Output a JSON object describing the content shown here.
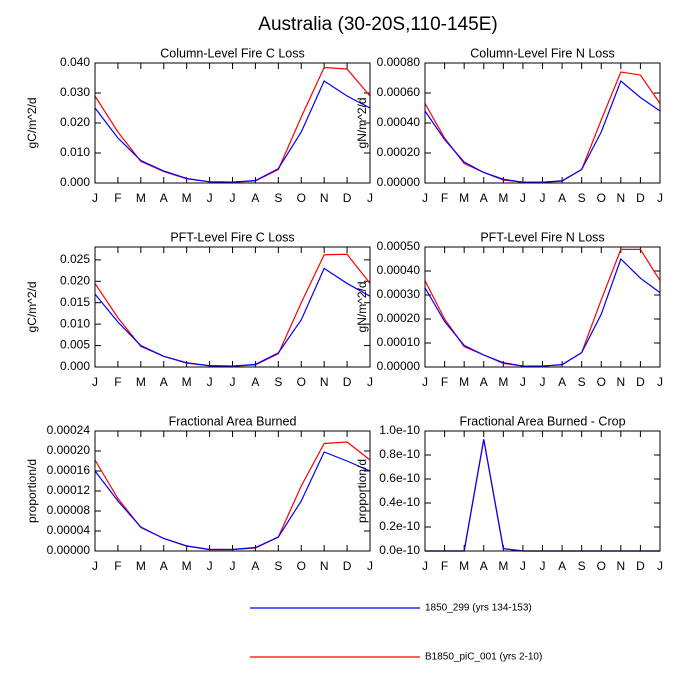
{
  "title": "Australia (30-20S,110-145E)",
  "chart_data": [
    {
      "type": "line",
      "title": "Column-Level Fire C Loss",
      "ylabel": "gC/m^2/d",
      "categories": [
        "J",
        "F",
        "M",
        "A",
        "M",
        "J",
        "J",
        "A",
        "S",
        "O",
        "N",
        "D",
        "J"
      ],
      "ylim": [
        0,
        0.04
      ],
      "yticks": [
        {
          "value": 0,
          "label": "0.000"
        },
        {
          "value": 0.01,
          "label": "0.010"
        },
        {
          "value": 0.02,
          "label": "0.020"
        },
        {
          "value": 0.03,
          "label": "0.030"
        },
        {
          "value": 0.04,
          "label": "0.040"
        }
      ],
      "series": [
        {
          "name": "B1850_piC_001 (yrs 2-10)",
          "color": "#ff0000",
          "values": [
            0.029,
            0.017,
            0.0072,
            0.0038,
            0.0014,
            0.0004,
            0.0003,
            0.0007,
            0.0045,
            0.022,
            0.0385,
            0.038,
            0.029
          ]
        },
        {
          "name": "1850_299 (yrs 134-153)",
          "color": "#0000ff",
          "values": [
            0.025,
            0.015,
            0.0075,
            0.004,
            0.0015,
            0.0004,
            0.0003,
            0.0008,
            0.0048,
            0.017,
            0.034,
            0.029,
            0.025
          ]
        }
      ]
    },
    {
      "type": "line",
      "title": "Column-Level Fire N Loss",
      "ylabel": "gN/m^2/d",
      "categories": [
        "J",
        "F",
        "M",
        "A",
        "M",
        "J",
        "J",
        "A",
        "S",
        "O",
        "N",
        "D",
        "J"
      ],
      "ylim": [
        0,
        0.0008
      ],
      "yticks": [
        {
          "value": 0,
          "label": "0.00000"
        },
        {
          "value": 0.0002,
          "label": "0.00020"
        },
        {
          "value": 0.0004,
          "label": "0.00040"
        },
        {
          "value": 0.0006,
          "label": "0.00060"
        },
        {
          "value": 0.0008,
          "label": "0.00080"
        }
      ],
      "series": [
        {
          "name": "B1850_piC_001 (yrs 2-10)",
          "color": "#ff0000",
          "values": [
            0.00053,
            0.0003,
            0.00013,
            7e-05,
            2e-05,
            5e-06,
            5e-06,
            1.2e-05,
            9e-05,
            0.00042,
            0.00074,
            0.00072,
            0.00053
          ]
        },
        {
          "name": "1850_299 (yrs 134-153)",
          "color": "#0000ff",
          "values": [
            0.00048,
            0.00029,
            0.00014,
            7e-05,
            2.5e-05,
            5e-06,
            5e-06,
            1.5e-05,
            9e-05,
            0.00034,
            0.00068,
            0.00057,
            0.00048
          ]
        }
      ]
    },
    {
      "type": "line",
      "title": "PFT-Level Fire C Loss",
      "ylabel": "gC/m^2/d",
      "categories": [
        "J",
        "F",
        "M",
        "A",
        "M",
        "J",
        "J",
        "A",
        "S",
        "O",
        "N",
        "D",
        "J"
      ],
      "ylim": [
        0,
        0.028
      ],
      "yticks": [
        {
          "value": 0,
          "label": "0.000"
        },
        {
          "value": 0.005,
          "label": "0.005"
        },
        {
          "value": 0.01,
          "label": "0.010"
        },
        {
          "value": 0.015,
          "label": "0.015"
        },
        {
          "value": 0.02,
          "label": "0.020"
        },
        {
          "value": 0.025,
          "label": "0.025"
        }
      ],
      "series": [
        {
          "name": "B1850_piC_001 (yrs 2-10)",
          "color": "#ff0000",
          "values": [
            0.0195,
            0.0115,
            0.0048,
            0.0025,
            0.0009,
            0.0003,
            0.0002,
            0.0005,
            0.0031,
            0.015,
            0.0262,
            0.0263,
            0.0195
          ]
        },
        {
          "name": "1850_299 (yrs 134-153)",
          "color": "#0000ff",
          "values": [
            0.017,
            0.0105,
            0.005,
            0.0025,
            0.001,
            0.0003,
            0.0002,
            0.0006,
            0.0033,
            0.011,
            0.023,
            0.0195,
            0.0165
          ]
        }
      ]
    },
    {
      "type": "line",
      "title": "PFT-Level Fire N Loss",
      "ylabel": "gN/m^2/d",
      "categories": [
        "J",
        "F",
        "M",
        "A",
        "M",
        "J",
        "J",
        "A",
        "S",
        "O",
        "N",
        "D",
        "J"
      ],
      "ylim": [
        0,
        0.0005
      ],
      "yticks": [
        {
          "value": 0,
          "label": "0.00000"
        },
        {
          "value": 0.0001,
          "label": "0.00010"
        },
        {
          "value": 0.0002,
          "label": "0.00020"
        },
        {
          "value": 0.0003,
          "label": "0.00030"
        },
        {
          "value": 0.0004,
          "label": "0.00040"
        },
        {
          "value": 0.0005,
          "label": "0.00050"
        }
      ],
      "series": [
        {
          "name": "B1850_piC_001 (yrs 2-10)",
          "color": "#ff0000",
          "values": [
            0.00036,
            0.0002,
            8.5e-05,
            5e-05,
            1.5e-05,
            4e-06,
            4e-06,
            9e-06,
            6e-05,
            0.00028,
            0.00049,
            0.00049,
            0.00036
          ]
        },
        {
          "name": "1850_299 (yrs 134-153)",
          "color": "#0000ff",
          "values": [
            0.00033,
            0.00019,
            9e-05,
            5e-05,
            1.8e-05,
            4e-06,
            4e-06,
            1e-05,
            6e-05,
            0.00022,
            0.00045,
            0.00037,
            0.00031
          ]
        }
      ]
    },
    {
      "type": "line",
      "title": "Fractional Area Burned",
      "ylabel": "proportion/d",
      "categories": [
        "J",
        "F",
        "M",
        "A",
        "M",
        "J",
        "J",
        "A",
        "S",
        "O",
        "N",
        "D",
        "J"
      ],
      "ylim": [
        0,
        0.00024
      ],
      "yticks": [
        {
          "value": 0,
          "label": "0.00000"
        },
        {
          "value": 4e-05,
          "label": "0.00004"
        },
        {
          "value": 8e-05,
          "label": "0.00008"
        },
        {
          "value": 0.00012,
          "label": "0.00012"
        },
        {
          "value": 0.00016,
          "label": "0.00016"
        },
        {
          "value": 0.0002,
          "label": "0.00020"
        },
        {
          "value": 0.00024,
          "label": "0.00024"
        }
      ],
      "series": [
        {
          "name": "B1850_piC_001 (yrs 2-10)",
          "color": "#ff0000",
          "values": [
            0.000182,
            0.000105,
            4.7e-05,
            2.5e-05,
            1e-05,
            3e-06,
            3e-06,
            6e-06,
            2.8e-05,
            0.00013,
            0.000215,
            0.000218,
            0.000182
          ]
        },
        {
          "name": "1850_299 (yrs 134-153)",
          "color": "#0000ff",
          "values": [
            0.00016,
            0.0001,
            4.8e-05,
            2.5e-05,
            1e-05,
            3e-06,
            3e-06,
            7e-06,
            2.8e-05,
            0.0001,
            0.000198,
            0.00018,
            0.00016
          ]
        }
      ]
    },
    {
      "type": "line",
      "title": "Fractional Area Burned - Crop",
      "ylabel": "proportion/d",
      "categories": [
        "J",
        "F",
        "M",
        "A",
        "M",
        "J",
        "J",
        "A",
        "S",
        "O",
        "N",
        "D",
        "J"
      ],
      "ylim": [
        0,
        1e-10
      ],
      "yticks": [
        {
          "value": 0,
          "label": "0.0e-10"
        },
        {
          "value": 2e-11,
          "label": "0.2e-10"
        },
        {
          "value": 4e-11,
          "label": "0.4e-10"
        },
        {
          "value": 6e-11,
          "label": "0.6e-10"
        },
        {
          "value": 8e-11,
          "label": "0.8e-10"
        },
        {
          "value": 1e-10,
          "label": "1.0e-10"
        }
      ],
      "series": [
        {
          "name": "B1850_piC_001 (yrs 2-10)",
          "color": "#ff0000",
          "values": [
            0,
            0,
            0,
            9.3e-11,
            2e-12,
            0,
            0,
            0,
            0,
            0,
            0,
            0,
            0
          ]
        },
        {
          "name": "1850_299 (yrs 134-153)",
          "color": "#0000ff",
          "values": [
            0,
            0,
            0,
            9.3e-11,
            2e-12,
            0,
            0,
            0,
            0,
            0,
            0,
            0,
            0
          ]
        }
      ]
    }
  ]
}
